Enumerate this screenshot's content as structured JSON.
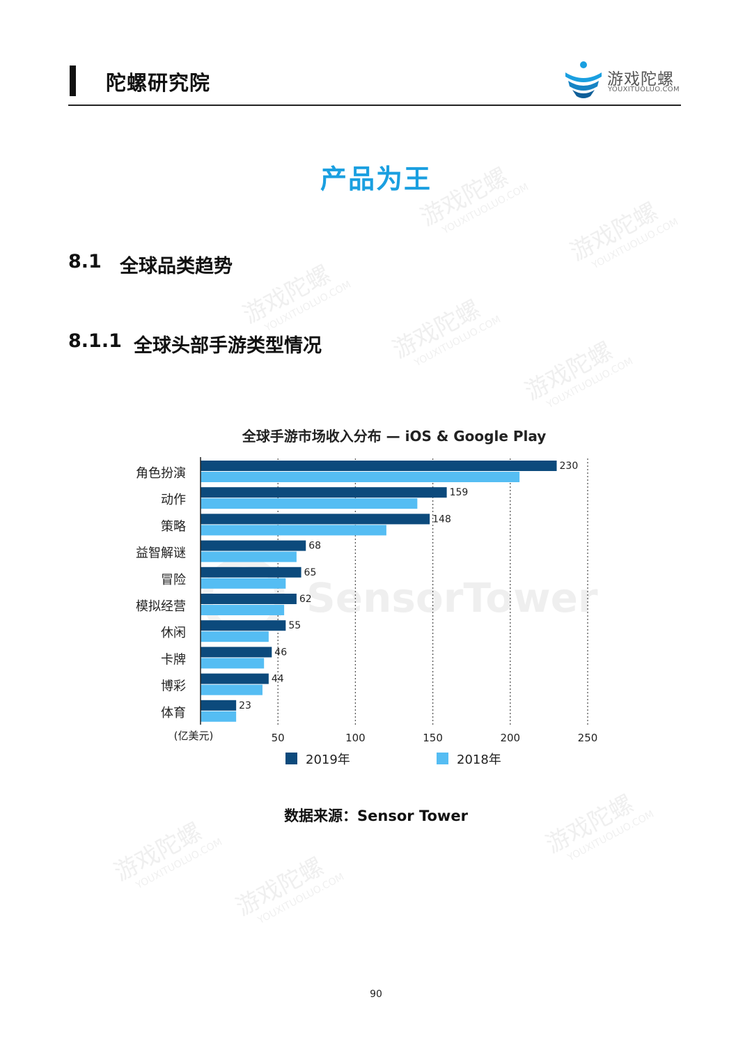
{
  "header": {
    "title": "陀螺研究院",
    "logo_cn": "游戏陀螺",
    "logo_en": "YOUXITUOLUO.COM"
  },
  "watermark": {
    "cn": "游戏陀螺",
    "en": "YOUXITUOLUO.COM"
  },
  "chapter": {
    "title": "产品为王"
  },
  "section": {
    "number": "8.1",
    "title": "全球品类趋势"
  },
  "subsection": {
    "number": "8.1.1",
    "title": "全球头部手游类型情况"
  },
  "chart_data": {
    "type": "bar",
    "orientation": "horizontal",
    "title": "全球手游市场收入分布 — iOS & Google Play",
    "unit_label": "(亿美元)",
    "categories": [
      "角色扮演",
      "动作",
      "策略",
      "益智解谜",
      "冒险",
      "模拟经营",
      "休闲",
      "卡牌",
      "博彩",
      "体育"
    ],
    "series": [
      {
        "name": "2019年",
        "color": "#0c4a7c",
        "values": [
          230,
          159,
          148,
          68,
          65,
          62,
          55,
          46,
          44,
          23
        ]
      },
      {
        "name": "2018年",
        "color": "#55bdf3",
        "values": [
          206,
          140,
          120,
          62,
          55,
          54,
          44,
          41,
          40,
          23
        ]
      }
    ],
    "data_labels_series": "2019年",
    "xlim": [
      0,
      250
    ],
    "xticks": [
      50,
      100,
      150,
      200,
      250
    ],
    "grid": "vertical-dotted",
    "legend_position": "bottom",
    "watermark_text": "SensorTower"
  },
  "source": {
    "text": "数据来源：Sensor Tower"
  },
  "page": {
    "number": "90"
  }
}
